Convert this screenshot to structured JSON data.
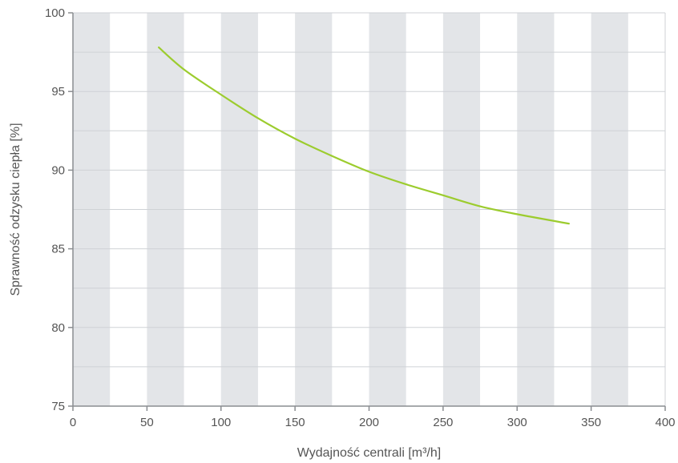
{
  "chart_data": {
    "type": "line",
    "xlabel": "Wydajność centrali [m³/h]",
    "ylabel": "Sprawność odzysku ciepła [%]",
    "xlim": [
      0,
      400
    ],
    "ylim": [
      75,
      100
    ],
    "x_ticks": [
      "0",
      "50",
      "100",
      "150",
      "200",
      "250",
      "300",
      "350",
      "400"
    ],
    "y_ticks": [
      "75",
      "80",
      "85",
      "90",
      "95",
      "100"
    ],
    "grid": true,
    "background": "alternating gray vertical bands every 25 m³/h",
    "series": [
      {
        "color": "#9ccc2e",
        "x": [
          58,
          75,
          100,
          125,
          150,
          175,
          200,
          225,
          250,
          275,
          300,
          335
        ],
        "y": [
          97.8,
          96.4,
          94.8,
          93.3,
          92.0,
          90.9,
          89.9,
          89.1,
          88.4,
          87.7,
          87.2,
          86.6
        ]
      }
    ],
    "colors": {
      "band": "#e3e5e8",
      "grid": "#cfd2d6",
      "axis": "#8a8d91",
      "text": "#555555"
    }
  }
}
